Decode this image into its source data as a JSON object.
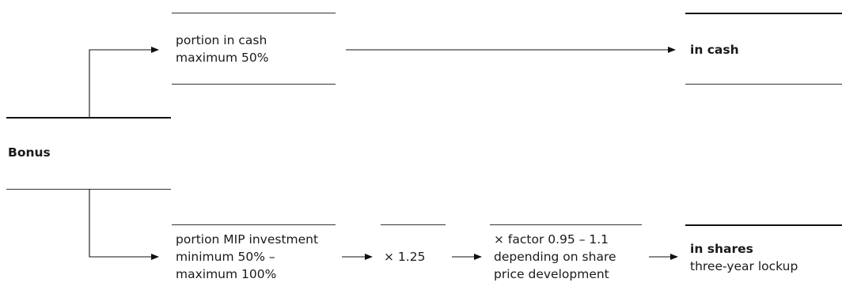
{
  "bonus": {
    "label": "Bonus"
  },
  "cash_branch": {
    "line1": "portion in cash",
    "line2": "maximum 50%",
    "result": "in cash"
  },
  "share_branch": {
    "line1": "portion MIP investment",
    "line2": "minimum 50% –",
    "line3": "maximum 100%",
    "multiplier": "× 1.25",
    "factor_line1": "× factor 0.95 – 1.1",
    "factor_line2": "depending on share",
    "factor_line3": "price development",
    "result": "in shares",
    "result_sub": "three-year lockup"
  }
}
